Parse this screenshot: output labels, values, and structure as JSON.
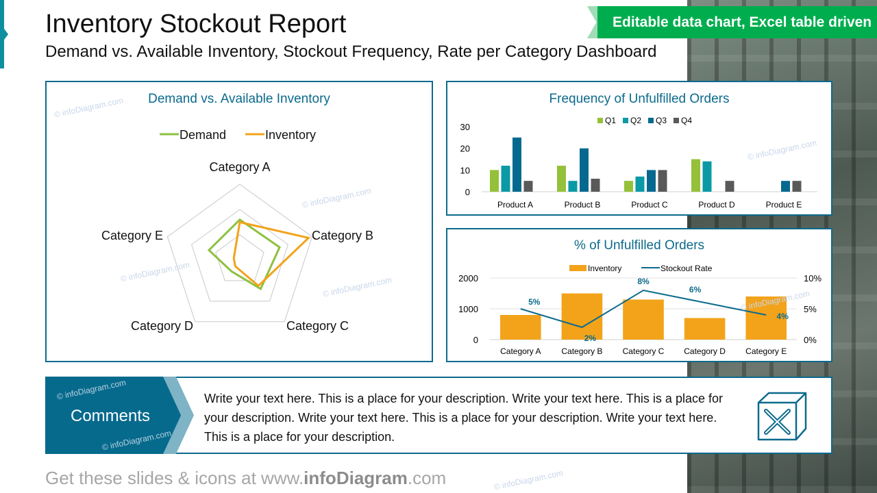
{
  "header": {
    "title": "Inventory Stockout Report",
    "subtitle": "Demand vs. Available Inventory, Stockout Frequency, Rate per Category Dashboard",
    "banner": "Editable data chart, Excel table driven"
  },
  "watermark": "© infoDiagram.com",
  "colors": {
    "accent": "#0b6a8c",
    "banner": "#00ad4e",
    "demand": "#8dc03f",
    "inventory": "#f2a31a",
    "q1": "#95c03a",
    "q2": "#0a9aa6",
    "q3": "#05698f",
    "q4": "#595959",
    "rate": "#0b6a8c"
  },
  "chart_data": [
    {
      "type": "radar",
      "title": "Demand vs. Available Inventory",
      "categories": [
        "Category A",
        "Category B",
        "Category C",
        "Category D",
        "Category E"
      ],
      "range": [
        0,
        3
      ],
      "grid": true,
      "legend": "top",
      "series": [
        {
          "name": "Demand",
          "values": [
            1.6,
            1.65,
            1.4,
            0.55,
            1.28
          ]
        },
        {
          "name": "Inventory",
          "values": [
            1.5,
            2.85,
            1.25,
            0.3,
            0.25
          ]
        }
      ]
    },
    {
      "type": "bar",
      "title": "Frequency of Unfulfilled Orders",
      "categories": [
        "Product A",
        "Product B",
        "Product C",
        "Product D",
        "Product E"
      ],
      "ylim": [
        0,
        30
      ],
      "yticks": [
        "0",
        "10",
        "20",
        "30"
      ],
      "legend": "top",
      "series": [
        {
          "name": "Q1",
          "values": [
            10,
            12,
            5,
            15,
            0
          ]
        },
        {
          "name": "Q2",
          "values": [
            12,
            5,
            7,
            14,
            0
          ]
        },
        {
          "name": "Q3",
          "values": [
            25,
            20,
            10,
            0,
            5
          ]
        },
        {
          "name": "Q4",
          "values": [
            5,
            6,
            10,
            5,
            5
          ]
        }
      ]
    },
    {
      "type": "bar+line",
      "title": "% of  Unfulfilled Orders",
      "categories": [
        "Category A",
        "Category B",
        "Category C",
        "Category D",
        "Category E"
      ],
      "ylim": [
        0,
        2000
      ],
      "yticks": [
        "0",
        "1000",
        "2000"
      ],
      "y2lim": [
        0,
        10
      ],
      "y2ticks": [
        "0%",
        "5%",
        "10%"
      ],
      "legend": "top",
      "series": [
        {
          "name": "Inventory",
          "type": "bar",
          "values": [
            800,
            1500,
            1300,
            700,
            1400
          ]
        },
        {
          "name": "Stockout Rate",
          "type": "line",
          "values": [
            5,
            2,
            8,
            6,
            4
          ],
          "labels": [
            "5%",
            "2%",
            "8%",
            "6%",
            "4%"
          ]
        }
      ]
    }
  ],
  "comments": {
    "label": "Comments",
    "text": "Write your text here. This is a place for your description. Write your text here. This is a place for your description. Write your text here. This is a place for your description. Write your text here. This is a place for your description.",
    "icon": "box-x-icon"
  },
  "footer": {
    "prefix": "Get these slides & icons at www.",
    "brand": "infoDiagram",
    ".com": ".com"
  }
}
